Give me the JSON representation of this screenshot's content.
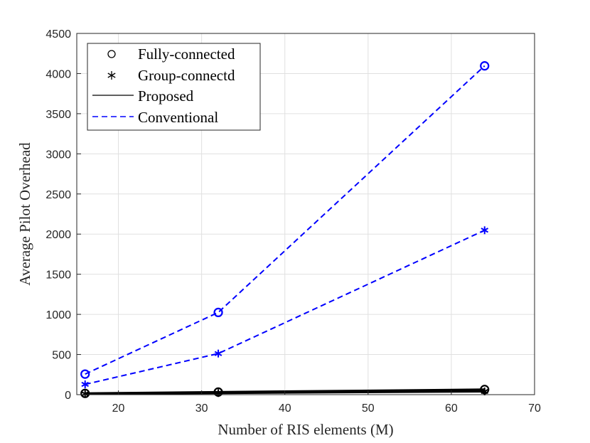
{
  "chart_data": {
    "type": "line",
    "xlabel": "Number of RIS elements (M)",
    "ylabel": "Average Pilot Overhead",
    "xlim": [
      15,
      70
    ],
    "ylim": [
      0,
      4500
    ],
    "xticks": [
      20,
      30,
      40,
      50,
      60,
      70
    ],
    "yticks": [
      0,
      500,
      1000,
      1500,
      2000,
      2500,
      3000,
      3500,
      4000,
      4500
    ],
    "grid": true,
    "legend_position": "top-left",
    "legend": [
      {
        "label": "Fully-connected",
        "symbol": "circle-marker"
      },
      {
        "label": "Group-connectd",
        "symbol": "asterisk-marker"
      },
      {
        "label": "Proposed",
        "symbol": "solid-line"
      },
      {
        "label": "Conventional",
        "symbol": "dashed-line"
      }
    ],
    "x": [
      16,
      32,
      64
    ],
    "series": [
      {
        "id": "fully-conventional",
        "marker": "circle",
        "style": "dashed",
        "color": "#0000ff",
        "values": [
          256,
          1024,
          4096
        ]
      },
      {
        "id": "group-conventional",
        "marker": "asterisk",
        "style": "dashed",
        "color": "#0000ff",
        "values": [
          128,
          512,
          2048
        ]
      },
      {
        "id": "fully-proposed",
        "marker": "circle",
        "style": "solid",
        "color": "#000000",
        "values": [
          16,
          32,
          64
        ]
      },
      {
        "id": "group-proposed",
        "marker": "asterisk",
        "style": "solid",
        "color": "#000000",
        "values": [
          10,
          20,
          40
        ]
      }
    ]
  }
}
